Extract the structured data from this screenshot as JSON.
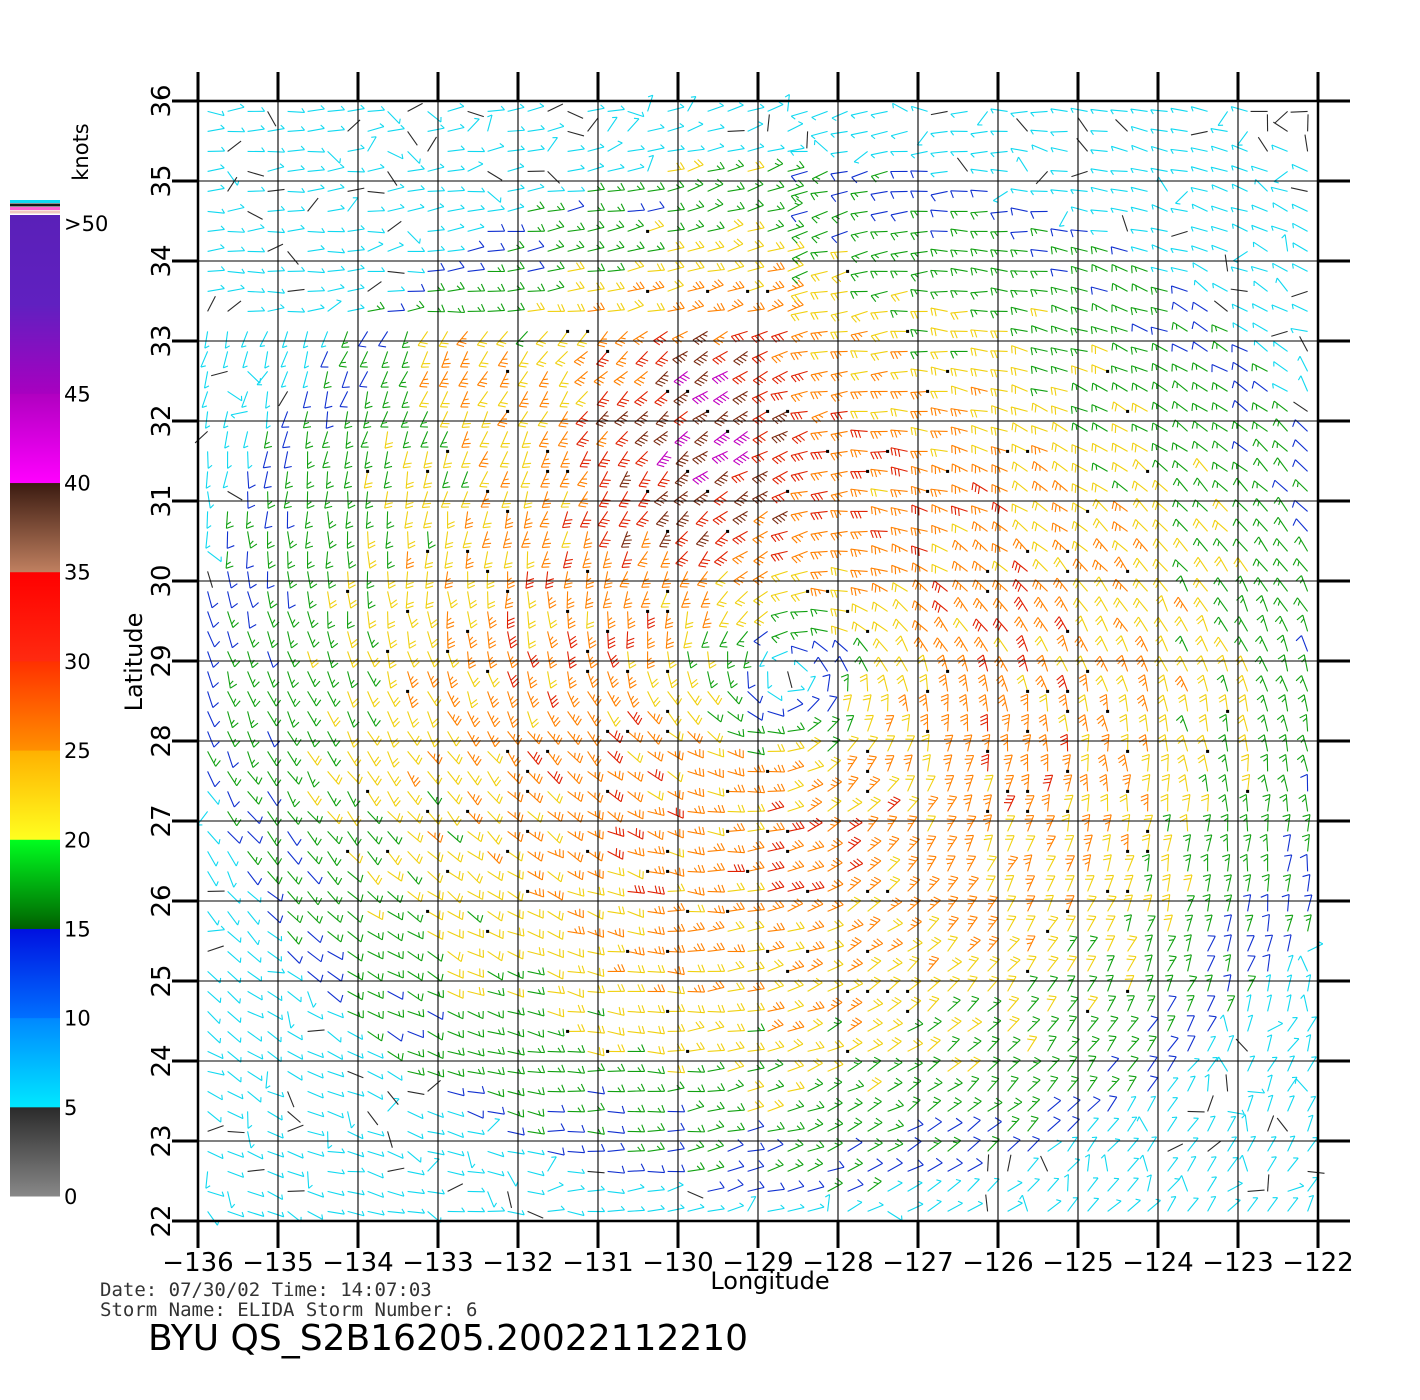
{
  "title_block": {
    "date_line": "Date: 07/30/02   Time: 14:07:03",
    "storm_line": "Storm Name: ELIDA   Storm Number: 6",
    "file_id": "BYU  QS_S2B16205.20022112210"
  },
  "axes": {
    "xlabel": "Longitude",
    "ylabel": "Latitude",
    "x_ticks": [
      "−136",
      "−135",
      "−134",
      "−133",
      "−132",
      "−131",
      "−130",
      "−129",
      "−128",
      "−127",
      "−126",
      "−125",
      "−124",
      "−123",
      "−122"
    ],
    "y_ticks": [
      "22",
      "23",
      "24",
      "25",
      "26",
      "27",
      "28",
      "29",
      "30",
      "31",
      "32",
      "33",
      "34",
      "35",
      "36"
    ],
    "lon_range": [
      -136,
      -122
    ],
    "lat_range": [
      22,
      36
    ],
    "grid": true
  },
  "colorbar": {
    "unit": "knots",
    "bands": [
      {
        "label": "0",
        "from": 0,
        "to": 5,
        "colors": [
          "#888888",
          "#2a2a2a"
        ]
      },
      {
        "label": "5",
        "from": 5,
        "to": 10,
        "colors": [
          "#00e8ff",
          "#0088ff"
        ]
      },
      {
        "label": "10",
        "from": 10,
        "to": 15,
        "colors": [
          "#0070ff",
          "#0010e0"
        ]
      },
      {
        "label": "15",
        "from": 15,
        "to": 20,
        "colors": [
          "#006000",
          "#00ff20"
        ]
      },
      {
        "label": "20",
        "from": 20,
        "to": 25,
        "colors": [
          "#ffff20",
          "#ffb000"
        ]
      },
      {
        "label": "25",
        "from": 25,
        "to": 30,
        "colors": [
          "#ff9000",
          "#ff3000"
        ]
      },
      {
        "label": "30",
        "from": 30,
        "to": 35,
        "colors": [
          "#ff2a10",
          "#ff0000"
        ]
      },
      {
        "label": "35",
        "from": 35,
        "to": 40,
        "colors": [
          "#c08060",
          "#3a1a10"
        ]
      },
      {
        "label": "40",
        "from": 40,
        "to": 45,
        "colors": [
          "#ff00ff",
          "#b000c0"
        ]
      },
      {
        "label": "45",
        "from": 45,
        "to": 50,
        "colors": [
          "#a800c0",
          "#6020c0"
        ]
      },
      {
        "label": ">50",
        "from": 50,
        "to": 55,
        "colors": [
          "#6020c0",
          "#5a20b8"
        ]
      }
    ]
  },
  "wind_field": {
    "storm_center": {
      "lon": -128.6,
      "lat": 28.8
    },
    "speed_classes": [
      {
        "max": 5,
        "color": "#2a2a2a"
      },
      {
        "max": 10,
        "color": "#10d8f0"
      },
      {
        "max": 15,
        "color": "#1030d0"
      },
      {
        "max": 20,
        "color": "#10a010"
      },
      {
        "max": 25,
        "color": "#f0d010"
      },
      {
        "max": 30,
        "color": "#ff8000"
      },
      {
        "max": 35,
        "color": "#e02000"
      },
      {
        "max": 40,
        "color": "#7a2a10"
      },
      {
        "max": 99,
        "color": "#c000c0"
      }
    ]
  }
}
